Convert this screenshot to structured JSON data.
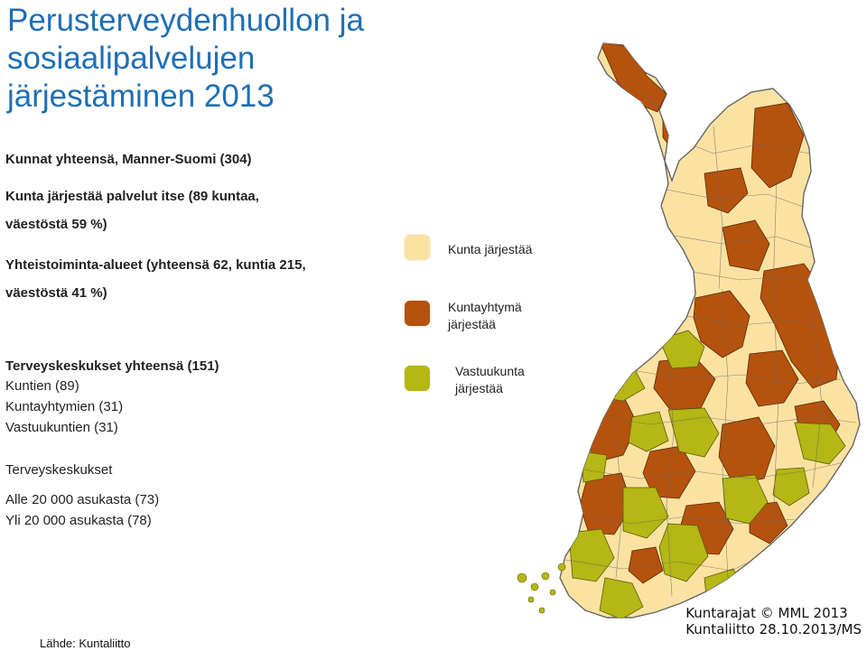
{
  "title_line1": "Perusterveydenhuollon ja sosiaalipalvelujen",
  "title_line2": "järjestäminen 2013",
  "stats": {
    "total": "Kunnat yhteensä, Manner-Suomi (304)",
    "self_line1": "Kunta järjestää palvelut itse (89 kuntaa,",
    "self_line2": "väestöstä 59 %)",
    "coop_line1": "Yhteistoiminta-alueet (yhteensä 62, kuntia 215,",
    "coop_line2": "väestöstä 41 %)",
    "hc_total": "Terveyskeskukset yhteensä (151)",
    "hc_municipal": "Kuntien (89)",
    "hc_joint": "Kuntayhtymien (31)",
    "hc_host": "Vastuukuntien (31)",
    "hc_heading": "Terveyskeskukset",
    "hc_small": "Alle 20 000 asukasta (73)",
    "hc_large": "Yli 20 000 asukasta (78)"
  },
  "legend": {
    "municipal_line1": "Kunta järjestää",
    "joint_line1": "Kuntayhtymä",
    "joint_line2": "järjestää",
    "host_line1": "Vastuukunta",
    "host_line2": "järjestää"
  },
  "colors": {
    "municipal": "#fbe2a2",
    "joint": "#b5520d",
    "host": "#b4b714",
    "title": "#1f6fb5"
  },
  "credits": {
    "line1": "Kuntarajat © MML 2013",
    "line2": "Kuntaliitto 28.10.2013/MS"
  },
  "source": "Lähde: Kuntaliitto"
}
